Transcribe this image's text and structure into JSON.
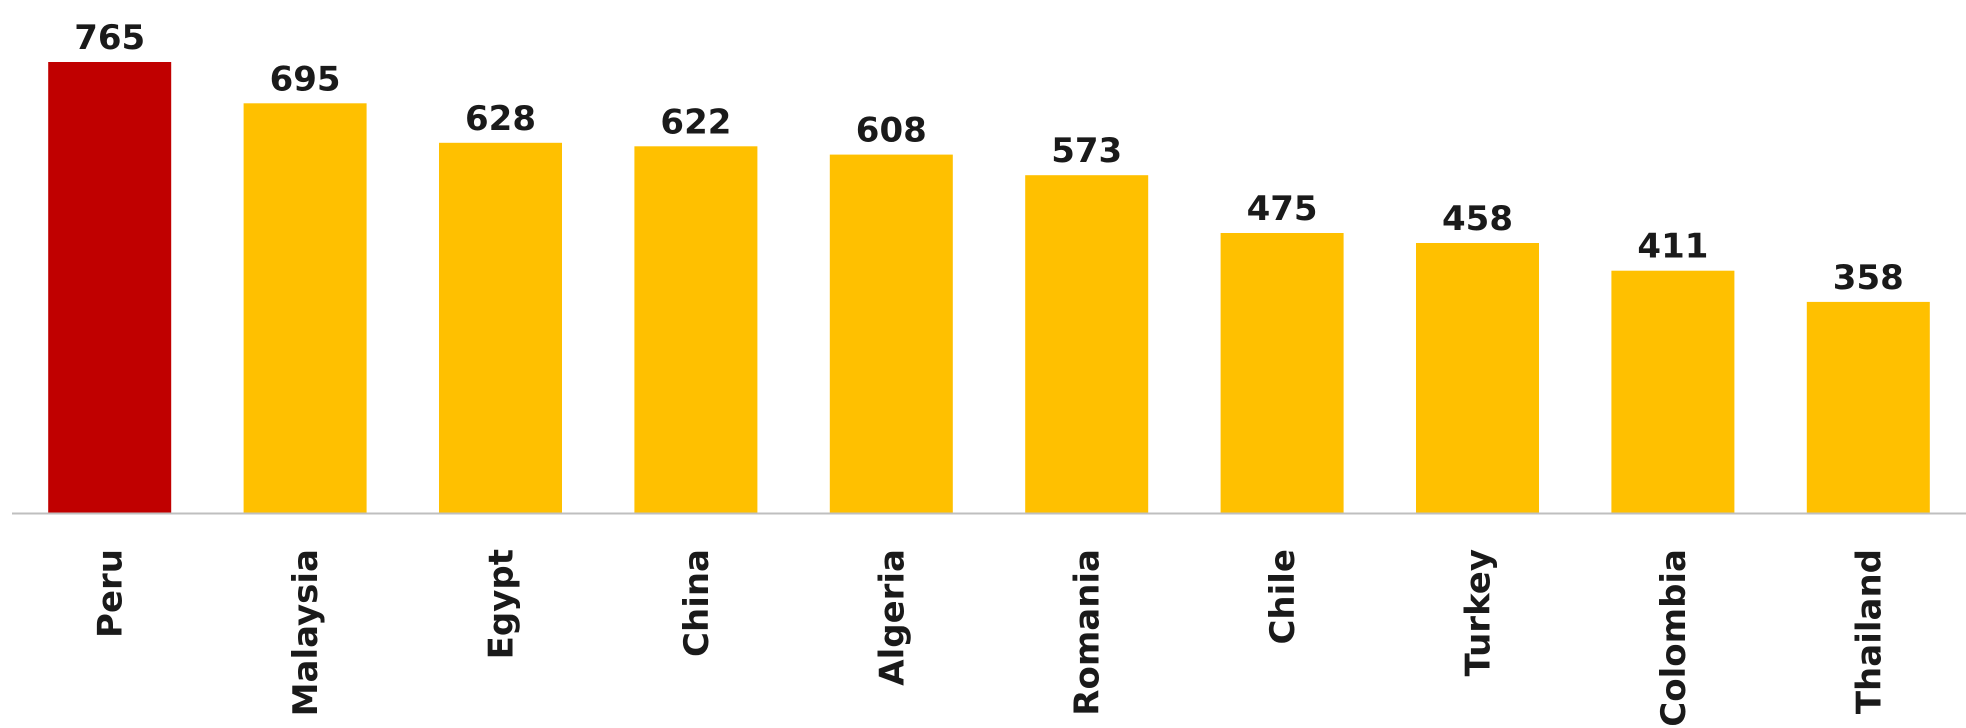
{
  "chart_data": {
    "type": "bar",
    "categories": [
      "Peru",
      "Malaysia",
      "Egypt",
      "China",
      "Algeria",
      "Romania",
      "Chile",
      "Turkey",
      "Colombia",
      "Thailand"
    ],
    "values": [
      765,
      695,
      628,
      622,
      608,
      573,
      475,
      458,
      411,
      358
    ],
    "highlight_category": "Peru",
    "colors": {
      "highlight": "#C00000",
      "default": "#FFC000",
      "axis": "#BFBFBF",
      "text": "#1a1a1a"
    },
    "title": "",
    "xlabel": "",
    "ylabel": "",
    "ylim": [
      0,
      765
    ],
    "grid": false,
    "legend": "none",
    "data_labels": true
  }
}
